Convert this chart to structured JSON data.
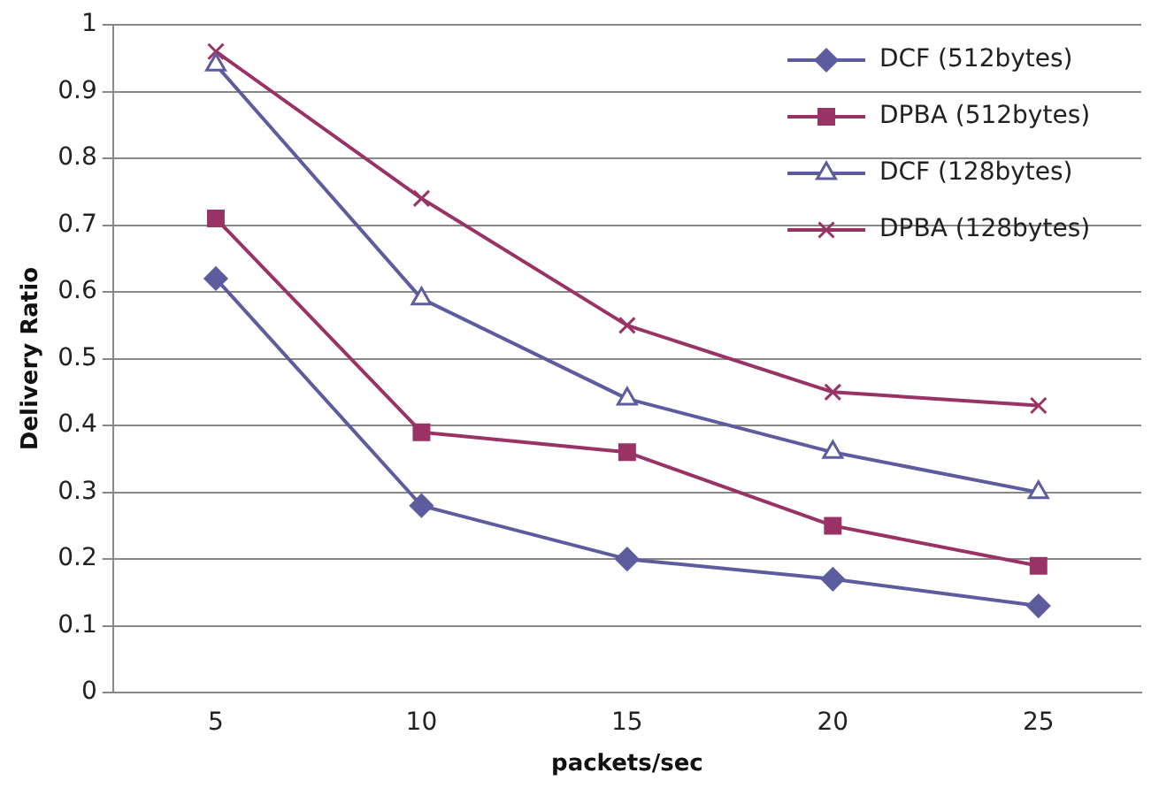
{
  "chart_data": {
    "type": "line",
    "xlabel": "packets/sec",
    "ylabel": "Delivery Ratio",
    "categories": [
      "5",
      "10",
      "15",
      "20",
      "25"
    ],
    "ylim": [
      0,
      1
    ],
    "yticks": [
      0,
      0.1,
      0.2,
      0.3,
      0.4,
      0.5,
      0.6,
      0.7,
      0.8,
      0.9,
      1
    ],
    "grid": "y",
    "legend": "top right",
    "line_style": "solid",
    "series": [
      {
        "name": "DCF (512bytes)",
        "color": "#5c5c9e",
        "marker": "diamond",
        "values": [
          0.62,
          0.28,
          0.2,
          0.17,
          0.13
        ]
      },
      {
        "name": "DPBA (512bytes)",
        "color": "#993366",
        "marker": "square",
        "values": [
          0.71,
          0.39,
          0.36,
          0.25,
          0.19
        ]
      },
      {
        "name": "DCF (128bytes)",
        "color": "#5c5c9e",
        "marker": "triangle",
        "values": [
          0.94,
          0.59,
          0.44,
          0.36,
          0.3
        ]
      },
      {
        "name": "DPBA (128bytes)",
        "color": "#993366",
        "marker": "cross",
        "values": [
          0.96,
          0.74,
          0.55,
          0.45,
          0.43
        ]
      }
    ]
  }
}
